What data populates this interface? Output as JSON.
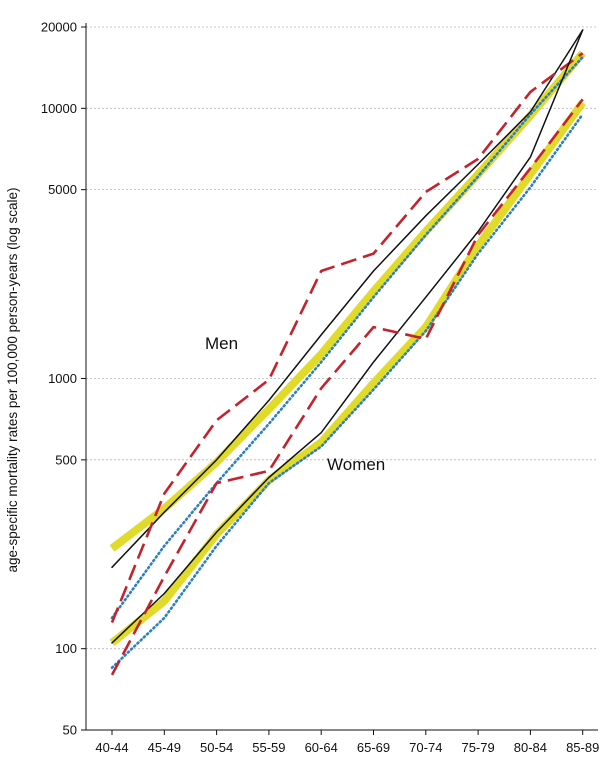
{
  "chart_data": {
    "type": "line",
    "title": "",
    "xlabel": "",
    "ylabel": "age-specific mortality rates per 100,000 person-years (log scale)",
    "y_scale": "log",
    "ylim": [
      50,
      20000
    ],
    "yticks": [
      50,
      100,
      500,
      1000,
      5000,
      10000,
      20000
    ],
    "grid": "horizontal dotted",
    "categories": [
      "40-44",
      "45-49",
      "50-54",
      "55-59",
      "60-64",
      "65-69",
      "70-74",
      "75-79",
      "80-84",
      "85-89"
    ],
    "annotations": [
      "Men",
      "Women"
    ],
    "series": [
      {
        "group": "Men",
        "style": "thick yellow",
        "color": "#e0db2a",
        "values": [
          235,
          330,
          490,
          770,
          1230,
          2100,
          3500,
          5700,
          9400,
          16000
        ]
      },
      {
        "group": "Men",
        "style": "thin black",
        "color": "#111111",
        "values": [
          200,
          320,
          500,
          830,
          1450,
          2500,
          4000,
          6200,
          9700,
          19500
        ]
      },
      {
        "group": "Men",
        "style": "dotted blue",
        "color": "#2b7fc6",
        "values": [
          130,
          240,
          410,
          680,
          1150,
          2000,
          3400,
          5600,
          9500,
          15500
        ]
      },
      {
        "group": "Men",
        "style": "dashed red",
        "color": "#c4222c",
        "values": [
          125,
          375,
          700,
          990,
          2500,
          2900,
          4900,
          6500,
          11500,
          16000
        ]
      },
      {
        "group": "Women",
        "style": "thick yellow",
        "color": "#e0db2a",
        "values": [
          105,
          150,
          265,
          420,
          580,
          960,
          1550,
          3100,
          5700,
          10500
        ]
      },
      {
        "group": "Women",
        "style": "thin black",
        "color": "#111111",
        "values": [
          105,
          160,
          270,
          430,
          630,
          1150,
          2000,
          3500,
          6600,
          19500
        ]
      },
      {
        "group": "Women",
        "style": "dotted blue",
        "color": "#2b7fc6",
        "values": [
          85,
          130,
          240,
          410,
          560,
          910,
          1500,
          2900,
          5100,
          9500
        ]
      },
      {
        "group": "Women",
        "style": "dashed red",
        "color": "#c4222c",
        "values": [
          80,
          185,
          410,
          455,
          920,
          1550,
          1400,
          3400,
          6000,
          10800
        ]
      }
    ]
  }
}
